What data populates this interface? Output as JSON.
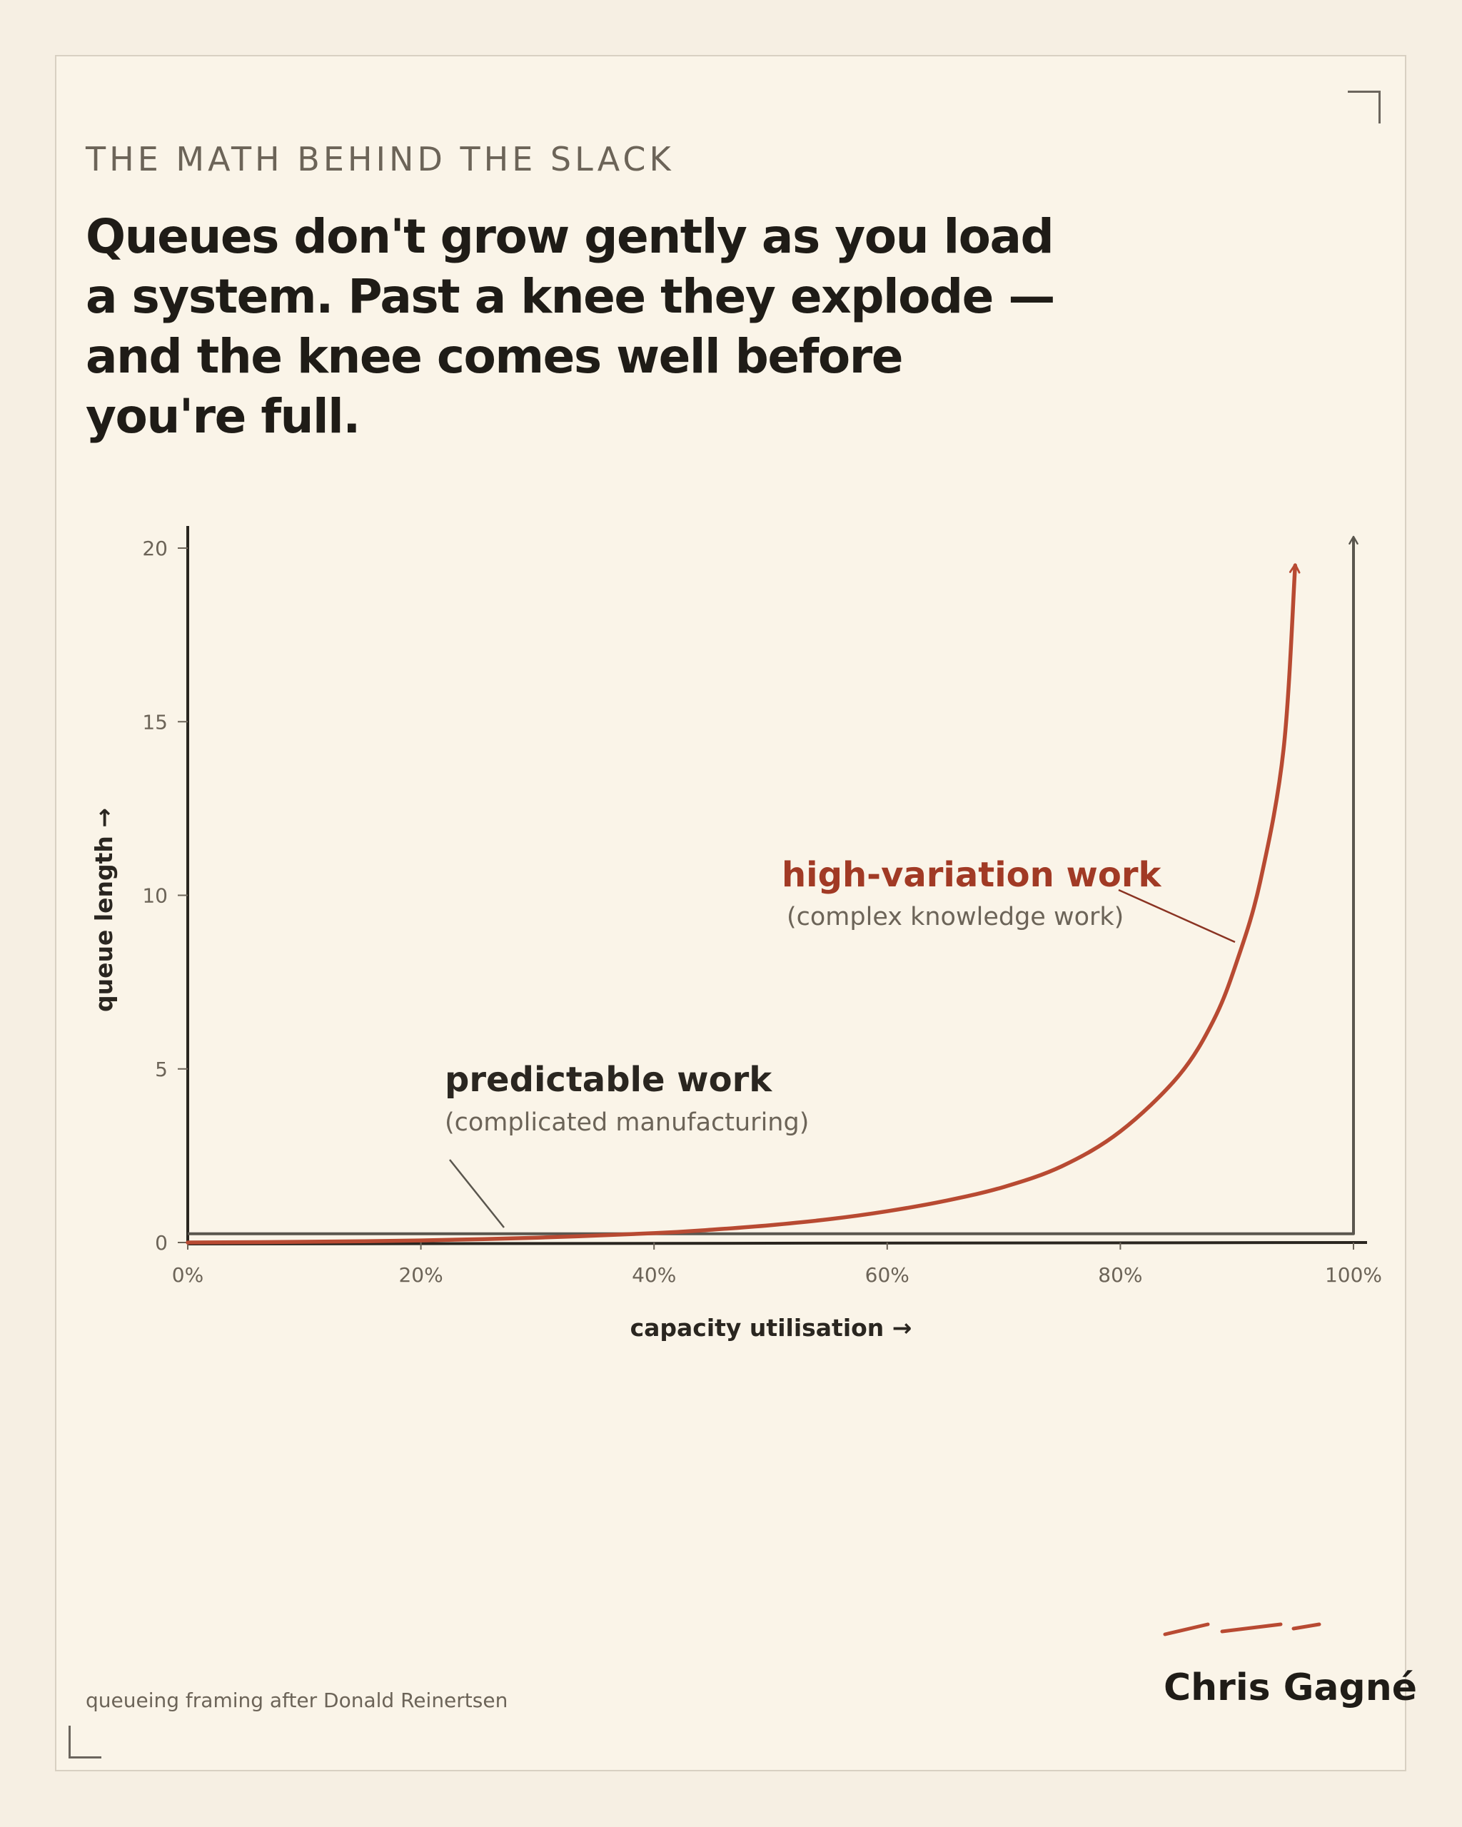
{
  "eyebrow": "THE MATH BEHIND THE SLACK",
  "headline": "Queues don't grow gently as you load a system. Past a knee they explode — and the knee comes well before you're full.",
  "footnote": "queueing framing after Donald Reinertsen",
  "author": "Chris Gagné",
  "colors": {
    "accent": "#b84a32",
    "accent_text": "#a13a25",
    "ink": "#1f1c17",
    "muted": "#6c6458",
    "background": "#faf4e8",
    "flat_line": "#5a564e"
  },
  "chart_data": {
    "type": "line",
    "xlabel": "capacity utilisation →",
    "ylabel": "queue length →",
    "xlim": [
      0,
      100
    ],
    "ylim": [
      0,
      20
    ],
    "x_ticks": [
      "0%",
      "20%",
      "40%",
      "60%",
      "80%",
      "100%"
    ],
    "y_ticks": [
      "0",
      "5",
      "10",
      "15",
      "20"
    ],
    "grid": false,
    "series": [
      {
        "name": "high-variation work",
        "color": "#b84a32",
        "x": [
          0,
          10,
          20,
          30,
          40,
          45,
          50,
          55,
          60,
          65,
          70,
          75,
          80,
          85,
          88,
          90,
          92,
          94,
          95
        ],
        "y": [
          0,
          0.02,
          0.06,
          0.14,
          0.27,
          0.37,
          0.5,
          0.67,
          0.9,
          1.2,
          1.6,
          2.2,
          3.2,
          4.8,
          6.4,
          8.1,
          10.4,
          14.2,
          19.5
        ],
        "label": "high-variation work",
        "sublabel": "(complex knowledge work)"
      },
      {
        "name": "predictable work",
        "color": "#5a564e",
        "x": [
          0,
          20,
          40,
          60,
          80,
          100,
          100
        ],
        "y": [
          0.25,
          0.25,
          0.25,
          0.25,
          0.25,
          0.25,
          20.3
        ],
        "label": "predictable work",
        "sublabel": "(complicated manufacturing)"
      }
    ]
  }
}
